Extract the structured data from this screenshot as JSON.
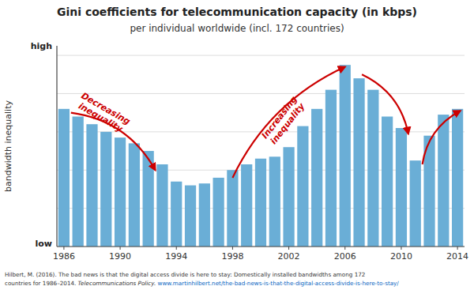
{
  "chart_data": {
    "type": "bar",
    "title": "Gini coefficients for telecommunication capacity (in kbps)",
    "subtitle": "per individual worldwide (incl. 172 countries)",
    "y_label": "bandwidth inequality",
    "categories": [
      "1986",
      null,
      null,
      null,
      "1990",
      null,
      null,
      null,
      "1994",
      null,
      null,
      null,
      "1998",
      null,
      null,
      null,
      "2002",
      null,
      null,
      null,
      "2006",
      null,
      null,
      null,
      "2010",
      null,
      null,
      null,
      "2014"
    ],
    "values": [
      0.72,
      0.68,
      0.64,
      0.6,
      0.57,
      0.54,
      0.5,
      0.43,
      0.34,
      0.32,
      0.33,
      0.36,
      0.4,
      0.43,
      0.46,
      0.47,
      0.52,
      0.63,
      0.72,
      0.82,
      0.95,
      0.88,
      0.82,
      0.68,
      0.62,
      0.45,
      0.58,
      0.69,
      0.72
    ],
    "color": "#6aaed6",
    "ylim": [
      0,
      1.05
    ],
    "yticks": [
      0,
      0.2,
      0.4,
      0.6,
      0.8,
      1.0
    ],
    "grid": true,
    "tick_labels": "x",
    "annotations": [
      {
        "text": "high"
      },
      {
        "text": "low"
      },
      {
        "text": "Decreasing\ninequality",
        "color": "#cc0000"
      },
      {
        "text": "Increasing\ninequality",
        "color": "#cc0000"
      }
    ],
    "source": [
      [
        {
          "text": "Hilbert, M. (2016). The bad news is that the digital access divide is here to stay: Domestically installed bandwidths among 172"
        }
      ],
      [
        {
          "text": "countries for 1986–2014. "
        },
        {
          "text": "Telecommunications Policy."
        },
        {
          "text": " www.martinhilbert.net/the-bad-news-is-that-the-digital-access-divide-is-here-to-stay/",
          "color": "#0563C1"
        }
      ]
    ]
  }
}
